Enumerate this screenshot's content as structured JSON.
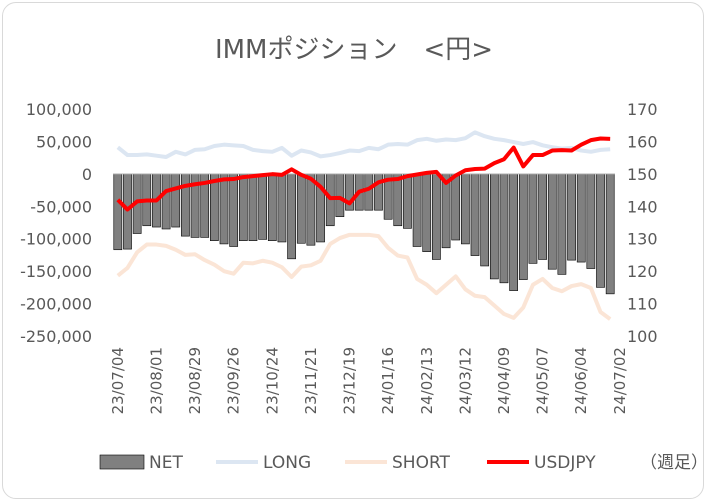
{
  "chart_data": {
    "type": "bar",
    "title": "IMMポジション　<円>",
    "unit_note": "（週足）",
    "y_left": {
      "min": -250000,
      "max": 100000,
      "step": 50000,
      "ticks": [
        "100,000",
        "50,000",
        "0",
        "-50,000",
        "-100,000",
        "-150,000",
        "-200,000",
        "-250,000"
      ]
    },
    "y_right": {
      "min": 100,
      "max": 170,
      "step": 10,
      "ticks": [
        "170",
        "160",
        "150",
        "140",
        "130",
        "120",
        "110",
        "100"
      ]
    },
    "x_labels": [
      "23/07/04",
      "23/08/01",
      "23/08/29",
      "23/09/26",
      "23/10/24",
      "23/11/21",
      "23/12/19",
      "24/01/16",
      "24/02/13",
      "24/03/12",
      "24/04/09",
      "24/05/07",
      "24/06/04",
      "24/07/02"
    ],
    "series": [
      {
        "name": "NET",
        "type": "bar",
        "color": "#808080",
        "axis": "left",
        "values": [
          -117000,
          -116000,
          -92000,
          -80000,
          -82000,
          -85000,
          -82000,
          -96000,
          -98000,
          -98000,
          -103000,
          -108000,
          -112000,
          -103000,
          -103000,
          -101000,
          -103000,
          -105000,
          -131000,
          -107000,
          -110000,
          -105000,
          -80000,
          -66000,
          -56000,
          -56000,
          -56000,
          -56000,
          -70000,
          -80000,
          -84000,
          -112000,
          -120000,
          -132000,
          -114000,
          -102000,
          -108000,
          -126000,
          -142000,
          -162000,
          -168000,
          -180000,
          -163000,
          -138000,
          -132000,
          -147000,
          -155000,
          -133000,
          -136000,
          -146000,
          -175000,
          -185000
        ]
      },
      {
        "name": "LONG",
        "type": "line",
        "color": "#dce6f2",
        "axis": "left",
        "values": [
          41000,
          29000,
          29000,
          30000,
          28000,
          26000,
          34000,
          30000,
          37000,
          38000,
          43000,
          45000,
          44000,
          43000,
          37000,
          35000,
          34000,
          40000,
          28000,
          36000,
          33000,
          27000,
          29000,
          32000,
          36000,
          35000,
          40000,
          38000,
          45000,
          46000,
          45000,
          52000,
          54000,
          51000,
          53000,
          52000,
          55000,
          64000,
          58000,
          54000,
          52000,
          49000,
          46000,
          49000,
          44000,
          41000,
          39000,
          40000,
          36000,
          34000,
          37000,
          38000
        ]
      },
      {
        "name": "SHORT",
        "type": "line",
        "color": "#fbe5d6",
        "axis": "left",
        "values": [
          -157000,
          -145000,
          -121000,
          -109000,
          -109000,
          -111000,
          -117000,
          -125000,
          -124000,
          -133000,
          -140000,
          -150000,
          -154000,
          -137000,
          -138000,
          -134000,
          -137000,
          -144000,
          -159000,
          -143000,
          -141000,
          -134000,
          -108000,
          -99000,
          -94000,
          -94000,
          -94000,
          -96000,
          -114000,
          -126000,
          -129000,
          -162000,
          -171000,
          -184000,
          -171000,
          -158000,
          -178000,
          -188000,
          -190000,
          -203000,
          -216000,
          -222000,
          -206000,
          -171000,
          -162000,
          -176000,
          -181000,
          -173000,
          -170000,
          -176000,
          -213000,
          -224000
        ]
      },
      {
        "name": "USDJPY",
        "type": "line",
        "color": "#ff0000",
        "axis": "right",
        "values": [
          142.0,
          139.0,
          141.5,
          141.8,
          141.8,
          144.7,
          145.5,
          146.3,
          146.8,
          147.2,
          147.8,
          148.3,
          148.4,
          149.0,
          149.3,
          149.6,
          149.9,
          149.7,
          151.4,
          149.7,
          148.5,
          146.0,
          142.5,
          142.6,
          140.9,
          144.5,
          145.4,
          147.4,
          148.2,
          148.4,
          149.3,
          149.8,
          150.3,
          150.6,
          147.2,
          149.5,
          151.1,
          151.5,
          151.6,
          153.3,
          154.5,
          158.1,
          152.3,
          155.8,
          155.8,
          157.2,
          157.3,
          157.2,
          159.0,
          160.4,
          160.9,
          160.8
        ]
      }
    ]
  }
}
